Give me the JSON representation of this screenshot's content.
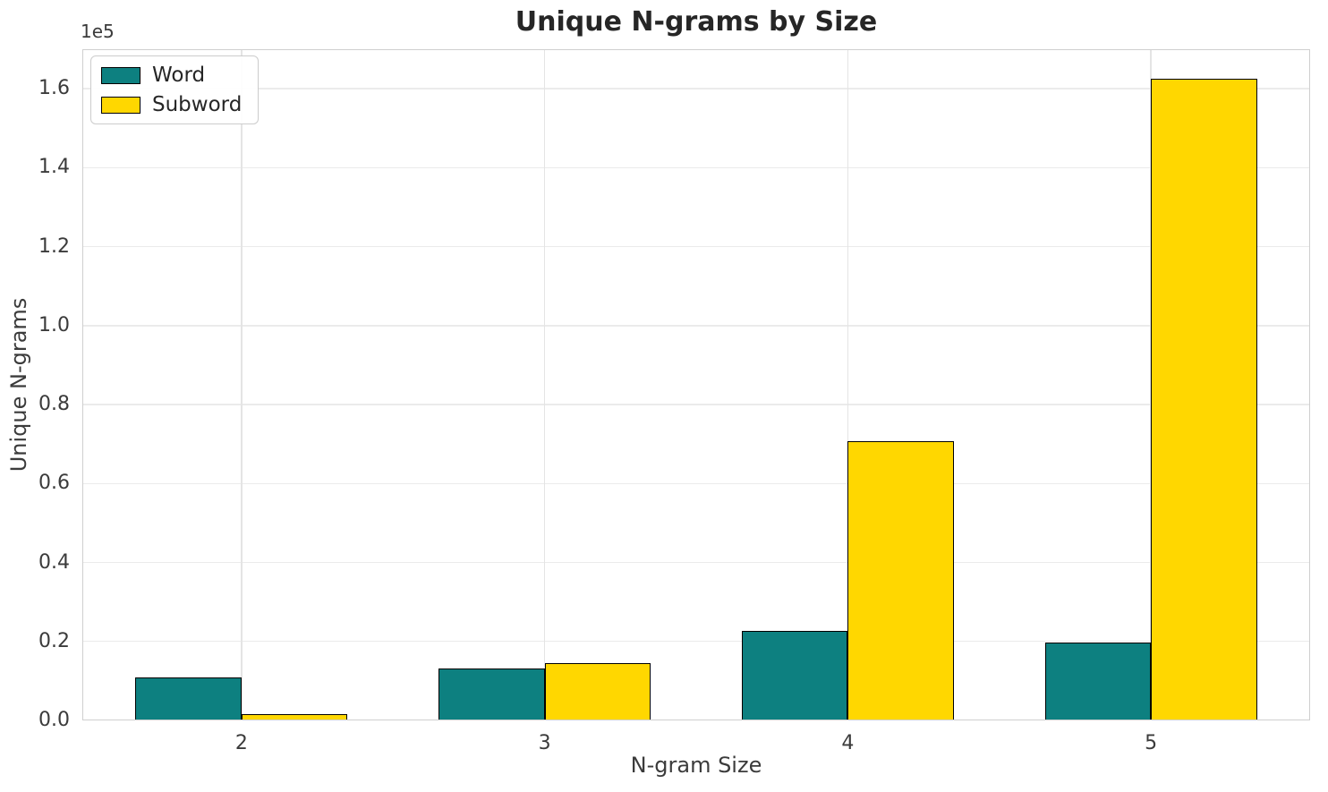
{
  "chart_data": {
    "type": "bar",
    "title": "Unique N-grams by Size",
    "xlabel": "N-gram Size",
    "ylabel": "Unique N-grams",
    "y_offset_text": "1e5",
    "categories": [
      "2",
      "3",
      "4",
      "5"
    ],
    "series": [
      {
        "name": "Word",
        "color": "#0d8080",
        "values": [
          10900,
          13200,
          22700,
          19800
        ]
      },
      {
        "name": "Subword",
        "color": "#ffd700",
        "values": [
          1600,
          14500,
          70800,
          162500
        ]
      }
    ],
    "bar_width": 0.35,
    "bar_edge_color": "#000000",
    "ylim": [
      0,
      170000
    ],
    "xlim": [
      -0.525,
      3.525
    ],
    "yticks": [
      0,
      20000,
      40000,
      60000,
      80000,
      100000,
      120000,
      140000,
      160000
    ],
    "ytick_labels": [
      "0.0",
      "0.2",
      "0.4",
      "0.6",
      "0.8",
      "1.0",
      "1.2",
      "1.4",
      "1.6"
    ],
    "grid": true,
    "legend_position": "upper left"
  }
}
